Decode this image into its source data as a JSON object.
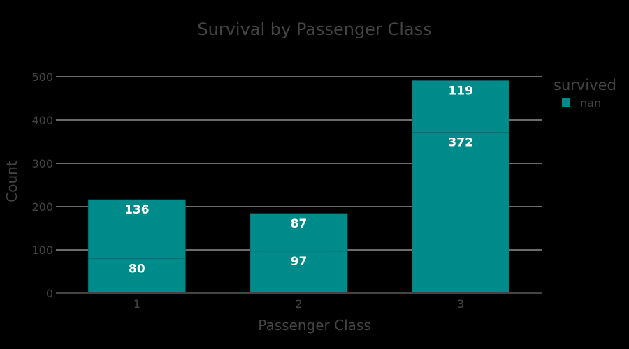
{
  "chart_data": {
    "type": "bar",
    "barmode": "stack",
    "title": "Survival by Passenger Class",
    "xlabel": "Passenger Class",
    "ylabel": "Count",
    "categories": [
      "1",
      "2",
      "3"
    ],
    "series": [
      {
        "values": [
          80,
          97,
          372
        ]
      },
      {
        "values": [
          136,
          87,
          119
        ]
      }
    ],
    "ylim": [
      0,
      500
    ],
    "yticks": [
      0,
      100,
      200,
      300,
      400,
      500
    ],
    "grid": true,
    "legend": {
      "title": "survived",
      "items": [
        {
          "label": "nan",
          "color": "#008b8b"
        }
      ],
      "placement": "top-right"
    },
    "colors": {
      "bar": "#008b8b",
      "background": "#000000",
      "text": "#444444",
      "grid": "#d9d9d9",
      "bar_label": "#ffffff"
    }
  }
}
